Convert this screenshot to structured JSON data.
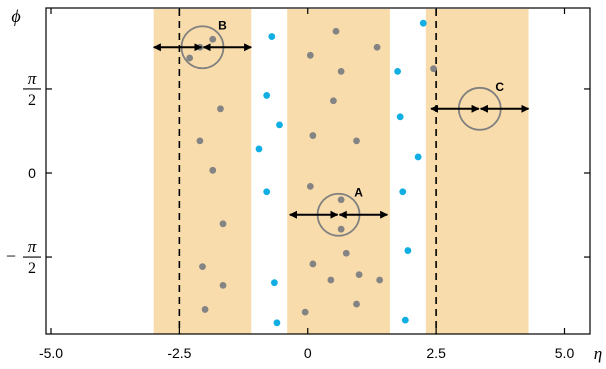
{
  "chart_data": {
    "type": "scatter",
    "xlabel": "η",
    "ylabel": "ϕ",
    "xlim": [
      -5.0,
      5.0
    ],
    "ylim": [
      -3.3,
      3.6
    ],
    "x_ticks": [
      {
        "value": -5.0,
        "label": "-5.0"
      },
      {
        "value": -2.5,
        "label": "-2.5"
      },
      {
        "value": 0.0,
        "label": "0"
      },
      {
        "value": 2.5,
        "label": "2.5"
      },
      {
        "value": 5.0,
        "label": "5.0"
      }
    ],
    "y_ticks": [
      {
        "value": 1.5708,
        "num": "π",
        "den": "2",
        "sign": ""
      },
      {
        "value": 0.0,
        "plain": "0"
      },
      {
        "value": -1.5708,
        "num": "π",
        "den": "2",
        "sign": "−"
      }
    ],
    "dashed_lines_x": [
      -2.5,
      2.5
    ],
    "bands": [
      {
        "x0": -3.0,
        "x1": -1.1
      },
      {
        "x0": -0.4,
        "x1": 1.6
      },
      {
        "x0": 2.3,
        "x1": 4.3
      }
    ],
    "band_color": "#f9dcab",
    "grey_color": "#848484",
    "blue_color": "#11aee4",
    "grey_points": [
      [
        0.55,
        2.65
      ],
      [
        1.35,
        2.35
      ],
      [
        0.05,
        2.2
      ],
      [
        0.65,
        1.9
      ],
      [
        2.45,
        1.95
      ],
      [
        0.5,
        1.35
      ],
      [
        0.1,
        0.7
      ],
      [
        0.95,
        0.6
      ],
      [
        0.05,
        -0.25
      ],
      [
        0.65,
        -0.5
      ],
      [
        0.65,
        -1.05
      ],
      [
        0.1,
        -1.7
      ],
      [
        0.75,
        -1.5
      ],
      [
        1.0,
        -1.9
      ],
      [
        0.45,
        -2.0
      ],
      [
        1.4,
        -2.0
      ],
      [
        -0.05,
        -2.6
      ],
      [
        0.95,
        -2.45
      ],
      [
        -1.7,
        1.2
      ],
      [
        -2.1,
        0.6
      ],
      [
        -1.85,
        0.05
      ],
      [
        -1.65,
        -0.95
      ],
      [
        -2.05,
        -1.75
      ],
      [
        -1.65,
        -2.1
      ],
      [
        -2.0,
        -2.55
      ],
      [
        -2.3,
        2.15
      ],
      [
        -1.85,
        2.5
      ],
      [
        -2.1,
        2.35
      ]
    ],
    "blue_points": [
      [
        -0.7,
        2.55
      ],
      [
        -0.8,
        1.45
      ],
      [
        -0.55,
        0.9
      ],
      [
        -0.95,
        0.45
      ],
      [
        -0.8,
        -0.35
      ],
      [
        -0.65,
        -2.05
      ],
      [
        -0.6,
        -2.8
      ],
      [
        1.75,
        1.9
      ],
      [
        1.8,
        1.05
      ],
      [
        2.15,
        0.3
      ],
      [
        1.85,
        -0.35
      ],
      [
        1.95,
        -1.45
      ],
      [
        1.9,
        -2.75
      ],
      [
        2.25,
        2.8
      ]
    ],
    "groups": [
      {
        "label": "B",
        "center": [
          -2.05,
          2.35
        ],
        "half_width": 0.95
      },
      {
        "label": "A",
        "center": [
          0.6,
          -0.78
        ],
        "half_width": 0.95
      },
      {
        "label": "C",
        "center": [
          3.35,
          1.2
        ],
        "half_width": 0.95
      }
    ]
  }
}
